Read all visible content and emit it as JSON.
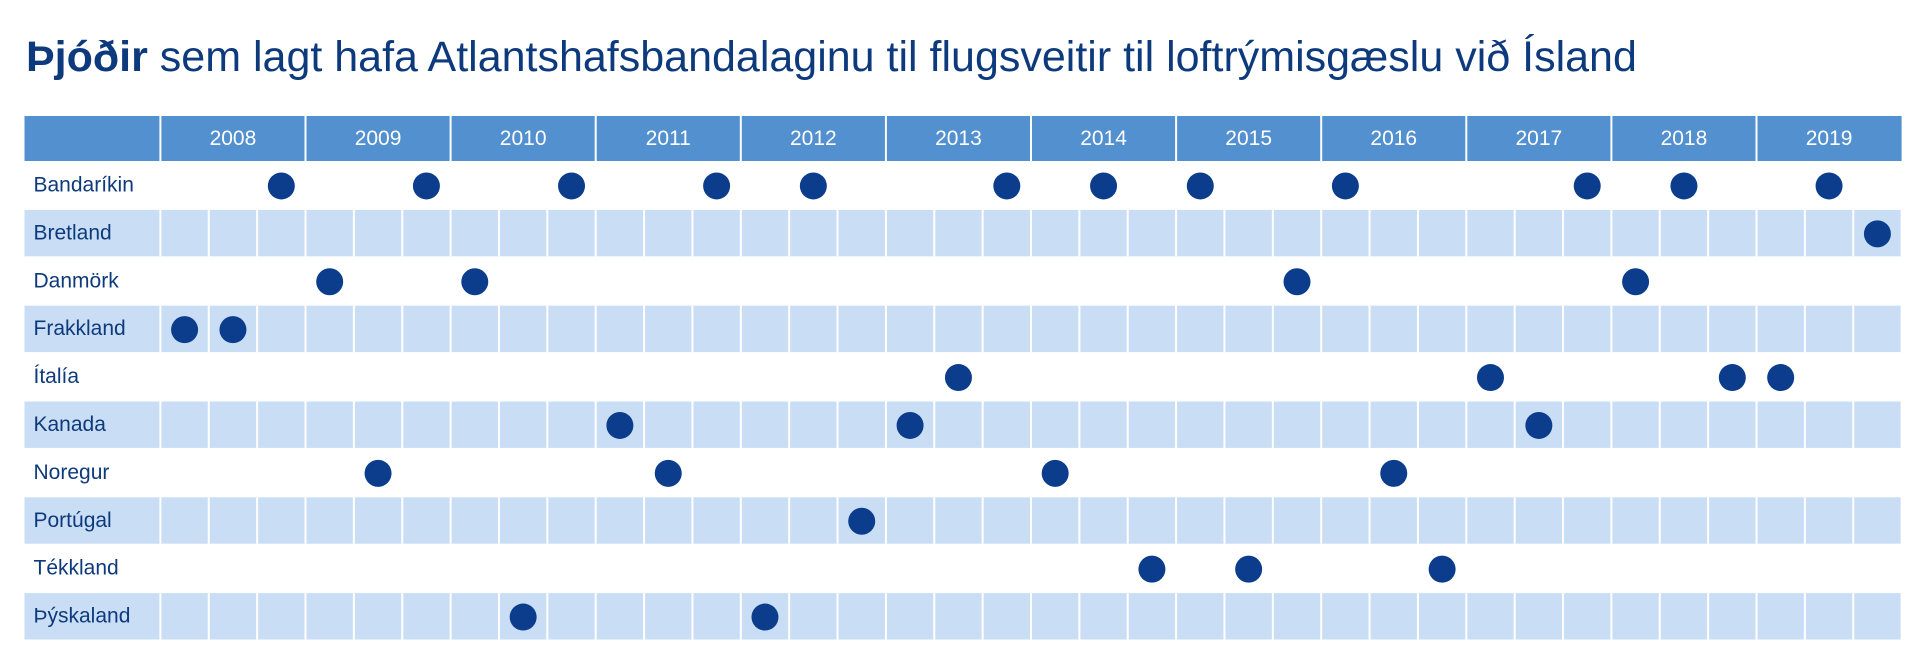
{
  "header": {
    "title_bold": "Þjóðir",
    "title_rest": " sem lagt hafa Atlantshafsbandalaginu til flugsveitir til loftrýmisgæslu við Ísland"
  },
  "table": {
    "years": [
      "2008",
      "2009",
      "2010",
      "2011",
      "2012",
      "2013",
      "2014",
      "2015",
      "2016",
      "2017",
      "2018",
      "2019"
    ],
    "periods_per_year": 3,
    "rows": [
      {
        "name": "Bandaríkin",
        "dots": [
          {
            "year": 2008,
            "period": 3
          },
          {
            "year": 2009,
            "period": 3
          },
          {
            "year": 2010,
            "period": 3
          },
          {
            "year": 2011,
            "period": 3
          },
          {
            "year": 2012,
            "period": 2
          },
          {
            "year": 2013,
            "period": 3
          },
          {
            "year": 2014,
            "period": 2
          },
          {
            "year": 2015,
            "period": 1
          },
          {
            "year": 2016,
            "period": 1
          },
          {
            "year": 2017,
            "period": 3
          },
          {
            "year": 2018,
            "period": 2
          },
          {
            "year": 2019,
            "period": 2
          }
        ]
      },
      {
        "name": "Bretland",
        "dots": [
          {
            "year": 2019,
            "period": 3
          }
        ]
      },
      {
        "name": "Danmörk",
        "dots": [
          {
            "year": 2009,
            "period": 1
          },
          {
            "year": 2010,
            "period": 1
          },
          {
            "year": 2015,
            "period": 3
          },
          {
            "year": 2018,
            "period": 1
          }
        ]
      },
      {
        "name": "Frakkland",
        "dots": [
          {
            "year": 2008,
            "period": 1
          },
          {
            "year": 2008,
            "period": 2
          }
        ]
      },
      {
        "name": "Ítalía",
        "dots": [
          {
            "year": 2013,
            "period": 2
          },
          {
            "year": 2017,
            "period": 1
          },
          {
            "year": 2018,
            "period": 3
          },
          {
            "year": 2019,
            "period": 1
          }
        ]
      },
      {
        "name": "Kanada",
        "dots": [
          {
            "year": 2011,
            "period": 1
          },
          {
            "year": 2013,
            "period": 1
          },
          {
            "year": 2017,
            "period": 2
          }
        ]
      },
      {
        "name": "Noregur",
        "dots": [
          {
            "year": 2009,
            "period": 2
          },
          {
            "year": 2011,
            "period": 2
          },
          {
            "year": 2014,
            "period": 1
          },
          {
            "year": 2016,
            "period": 2
          }
        ]
      },
      {
        "name": "Portúgal",
        "dots": [
          {
            "year": 2012,
            "period": 3
          }
        ]
      },
      {
        "name": "Tékkland",
        "dots": [
          {
            "year": 2014,
            "period": 3
          },
          {
            "year": 2015,
            "period": 2
          },
          {
            "year": 2016,
            "period": 3
          }
        ]
      },
      {
        "name": "Þýskaland",
        "dots": [
          {
            "year": 2010,
            "period": 2
          },
          {
            "year": 2012,
            "period": 1
          }
        ]
      }
    ]
  },
  "colors": {
    "header": "#5290cf",
    "shade": "#c9ddf5",
    "dot": "#0b3d8c",
    "text": "#0d3a7c"
  }
}
